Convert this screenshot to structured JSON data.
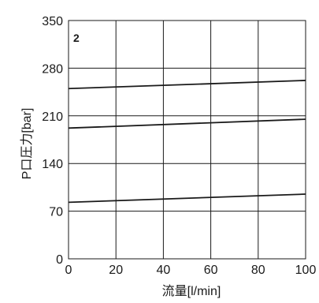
{
  "chart_data": {
    "type": "line",
    "panel_label": "2",
    "xlabel": "流量[l/min]",
    "ylabel": "P口圧力[bar]",
    "xlim": [
      0,
      100
    ],
    "ylim": [
      0,
      350
    ],
    "x_ticks": [
      0,
      20,
      40,
      60,
      80,
      100
    ],
    "y_ticks": [
      0,
      70,
      140,
      210,
      280,
      350
    ],
    "grid": true,
    "series": [
      {
        "x": [
          0,
          100
        ],
        "values": [
          250,
          262
        ]
      },
      {
        "x": [
          0,
          100
        ],
        "values": [
          192,
          205
        ]
      },
      {
        "x": [
          0,
          100
        ],
        "values": [
          83,
          95
        ]
      }
    ]
  },
  "colors": {
    "line": "#1a1a1a",
    "grid": "#1a1a1a",
    "background": "#ffffff"
  }
}
